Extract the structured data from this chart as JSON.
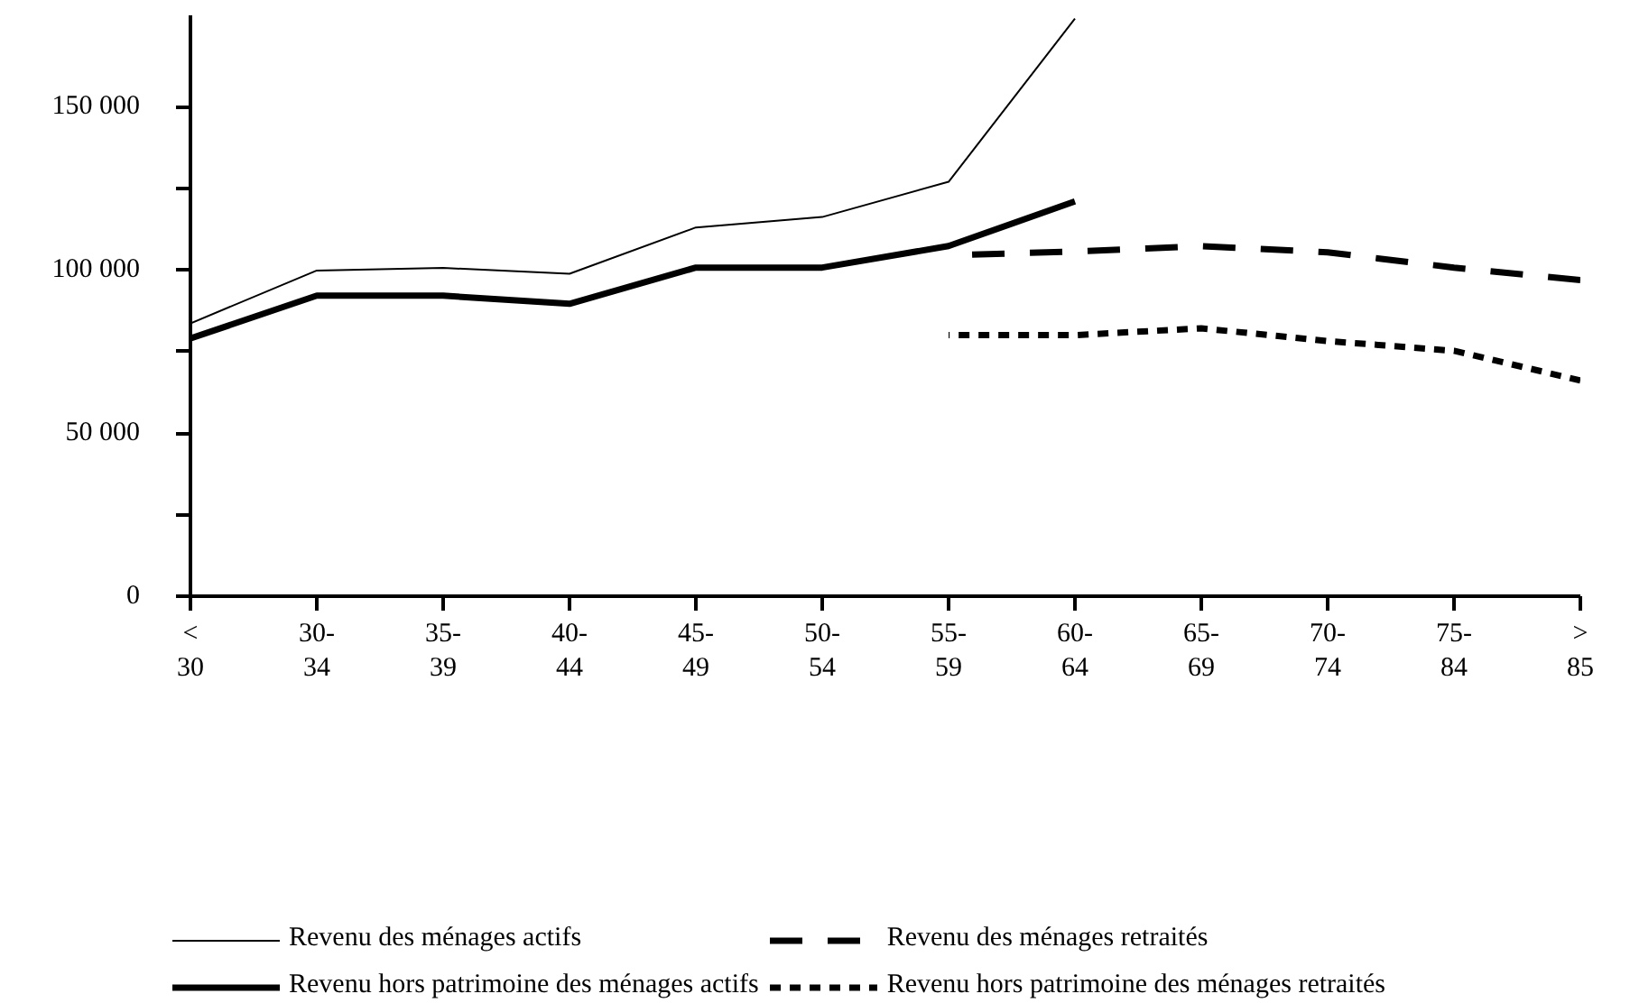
{
  "chart_data": {
    "type": "line",
    "categories": [
      "<30",
      "30-34",
      "35-39",
      "40-44",
      "45-49",
      "50-54",
      "55-59",
      "60-64",
      "65-69",
      "70-74",
      "75-84",
      ">85"
    ],
    "series": [
      {
        "name": "Revenu des ménages actifs",
        "color": "#000000",
        "line_style": "solid",
        "values": [
          83600,
          99800,
          100600,
          98800,
          113000,
          116200,
          127000,
          177000,
          null,
          null,
          null,
          null
        ]
      },
      {
        "name": "Revenu hors patrimoine des ménages actifs",
        "color": "#000000",
        "line_style": "solid",
        "values": [
          79000,
          92100,
          92100,
          89600,
          100700,
          100700,
          107300,
          121000,
          null,
          null,
          null,
          null
        ]
      },
      {
        "name": "Revenu des ménages retraités",
        "color": "#000000",
        "line_style": "dashed",
        "values": [
          null,
          null,
          null,
          null,
          null,
          null,
          104500,
          105600,
          107300,
          105400,
          100700,
          96900
        ]
      },
      {
        "name": "Revenu hors patrimoine des ménages retraités",
        "color": "#000000",
        "line_style": "dotted",
        "values": [
          null,
          null,
          null,
          null,
          null,
          null,
          80000,
          80000,
          82100,
          78200,
          75200,
          66100
        ]
      }
    ],
    "ylim": [
      0,
      178000
    ],
    "yticks": [
      {
        "value": 0,
        "label": "0"
      },
      {
        "value": 25000,
        "label": null
      },
      {
        "value": 50000,
        "label": "50 000"
      },
      {
        "value": 75000,
        "label": null
      },
      {
        "value": 100000,
        "label": "100 000"
      },
      {
        "value": 125000,
        "label": null
      },
      {
        "value": 150000,
        "label": "150 000"
      }
    ],
    "grid": false,
    "legend": "bottom",
    "marker": "none"
  }
}
